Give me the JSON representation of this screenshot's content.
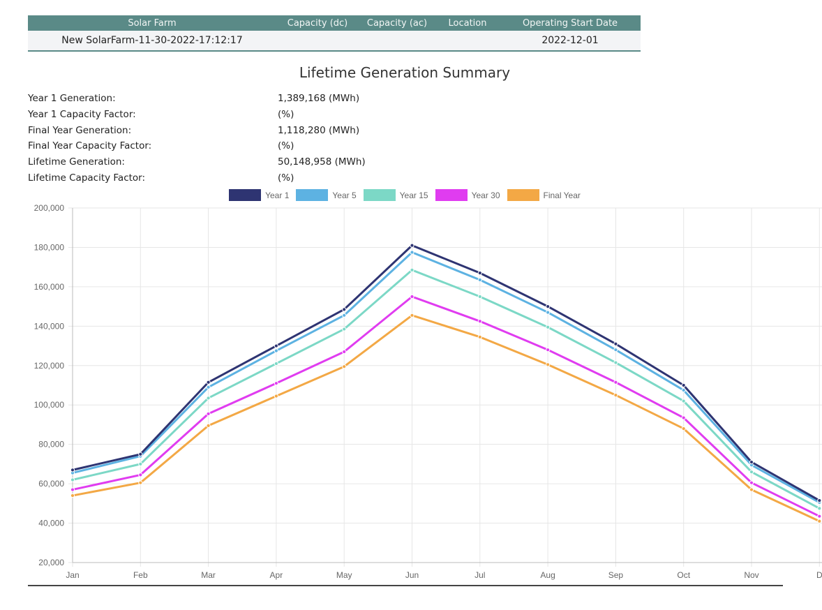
{
  "table": {
    "headers": [
      "Solar Farm",
      "Capacity (dc)",
      "Capacity (ac)",
      "Location",
      "Operating Start Date"
    ],
    "row": {
      "farm": "New SolarFarm-11-30-2022-17:12:17",
      "capacity_dc": "",
      "capacity_ac": "",
      "location": "",
      "start_date": "2022-12-01"
    },
    "colors": {
      "header_bg": "#5a8a87",
      "row_bg": "#f3f4f6"
    }
  },
  "summary": {
    "title": "Lifetime Generation Summary",
    "stats": [
      {
        "label": "Year 1 Generation:",
        "value": "1,389,168 (MWh)"
      },
      {
        "label": "Year 1 Capacity Factor:",
        "value": "(%)"
      },
      {
        "label": "Final Year Generation:",
        "value": "1,118,280 (MWh)"
      },
      {
        "label": "Final Year Capacity Factor:",
        "value": "(%)"
      },
      {
        "label": "Lifetime Generation:",
        "value": "50,148,958 (MWh)"
      },
      {
        "label": "Lifetime Capacity Factor:",
        "value": "(%)"
      }
    ]
  },
  "chart_data": {
    "type": "line",
    "categories": [
      "Jan",
      "Feb",
      "Mar",
      "Apr",
      "May",
      "Jun",
      "Jul",
      "Aug",
      "Sep",
      "Oct",
      "Nov",
      "Dec"
    ],
    "tick_labels_x": [
      "Jan",
      "Feb",
      "Mar",
      "Apr",
      "May",
      "Jun",
      "Jul",
      "Aug",
      "Sep",
      "Oct",
      "Nov",
      "D"
    ],
    "ylim": [
      20000,
      200000
    ],
    "yticks": [
      20000,
      40000,
      60000,
      80000,
      100000,
      120000,
      140000,
      160000,
      180000,
      200000
    ],
    "ytick_labels": [
      "20,000",
      "40,000",
      "60,000",
      "80,000",
      "100,000",
      "120,000",
      "140,000",
      "160,000",
      "180,000",
      "200,000"
    ],
    "grid": true,
    "legend_position": "top",
    "series": [
      {
        "name": "Year 1",
        "color": "#2e3472",
        "values": [
          67000,
          75000,
          111500,
          130000,
          148500,
          181000,
          167000,
          150000,
          131000,
          110000,
          71000,
          51500
        ]
      },
      {
        "name": "Year 5",
        "color": "#5db2e2",
        "values": [
          65500,
          74000,
          109000,
          127500,
          145500,
          177500,
          163500,
          147000,
          128000,
          107500,
          69500,
          50500
        ]
      },
      {
        "name": "Year 15",
        "color": "#7cd8c6",
        "values": [
          62000,
          70000,
          103500,
          121000,
          138500,
          168500,
          155000,
          139500,
          121500,
          102000,
          66000,
          47500
        ]
      },
      {
        "name": "Year 30",
        "color": "#e03cf0",
        "values": [
          57000,
          64500,
          95500,
          111000,
          127000,
          155000,
          142500,
          128000,
          111500,
          93500,
          60500,
          43500
        ]
      },
      {
        "name": "Final Year",
        "color": "#f3a845",
        "values": [
          54000,
          60500,
          89500,
          104500,
          119500,
          145500,
          134500,
          120500,
          105000,
          88000,
          57000,
          41000
        ]
      }
    ]
  }
}
